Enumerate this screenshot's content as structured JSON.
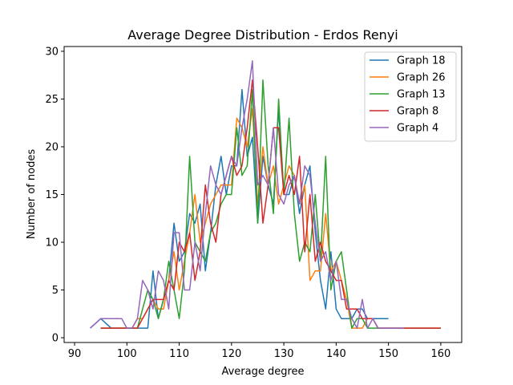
{
  "chart_data": {
    "type": "line",
    "title": "Average Degree Distribution - Erdos Renyi",
    "xlabel": "Average degree",
    "ylabel": "Number of nodes",
    "xlim": [
      88,
      164
    ],
    "ylim": [
      -0.5,
      30.5
    ],
    "xticks": [
      90,
      100,
      110,
      120,
      130,
      140,
      150,
      160
    ],
    "yticks": [
      0,
      5,
      10,
      15,
      20,
      25,
      30
    ],
    "grid": false,
    "legend_position": "top-right",
    "series": [
      {
        "name": "Graph 18",
        "color": "#1f77b4",
        "x": [
          93,
          94,
          95,
          96,
          97,
          98,
          99,
          100,
          101,
          102,
          103,
          104,
          105,
          106,
          107,
          108,
          109,
          110,
          111,
          112,
          113,
          114,
          115,
          116,
          117,
          118,
          119,
          120,
          121,
          122,
          123,
          124,
          125,
          126,
          127,
          128,
          129,
          130,
          131,
          132,
          133,
          134,
          135,
          136,
          137,
          138,
          139,
          140,
          141,
          142,
          143,
          144,
          145,
          146,
          147,
          148,
          149,
          150
        ],
        "y": [
          1,
          1.5,
          2,
          1.5,
          1,
          1,
          1,
          1,
          1,
          1,
          1,
          1,
          7,
          2,
          4,
          6,
          12,
          8,
          9,
          13,
          12,
          14,
          7,
          11,
          16,
          19,
          15,
          18,
          18,
          26,
          19,
          21,
          12,
          19,
          16,
          14,
          24,
          15,
          15,
          17,
          13,
          16,
          18,
          11,
          6,
          3,
          9,
          3,
          2,
          2,
          2,
          3,
          3,
          2,
          2,
          2,
          2,
          2
        ]
      },
      {
        "name": "Graph 26",
        "color": "#ff7f0e",
        "x": [
          95,
          96,
          97,
          98,
          99,
          100,
          101,
          102,
          103,
          104,
          105,
          106,
          107,
          108,
          109,
          110,
          111,
          112,
          113,
          114,
          115,
          116,
          117,
          118,
          119,
          120,
          121,
          122,
          123,
          124,
          125,
          126,
          127,
          128,
          129,
          130,
          131,
          132,
          133,
          134,
          135,
          136,
          137,
          138,
          139,
          140,
          141,
          142,
          143,
          144,
          145,
          146,
          147,
          148,
          149,
          150,
          151,
          152,
          153,
          154,
          155,
          156,
          157,
          158,
          159,
          160
        ],
        "y": [
          1,
          1,
          1,
          1,
          1,
          1,
          1,
          2,
          2,
          3,
          4,
          3,
          3,
          6,
          9,
          5,
          8,
          11,
          15,
          10,
          12,
          14,
          15,
          16,
          16,
          16,
          23,
          22,
          20,
          24,
          14,
          20,
          16,
          18,
          14,
          16,
          18,
          17,
          14,
          16,
          6,
          7,
          7,
          13,
          7,
          8,
          6,
          4,
          1,
          1,
          1,
          2,
          2,
          1,
          1,
          1,
          1,
          1,
          1,
          1,
          1,
          1,
          1,
          1,
          1,
          1
        ]
      },
      {
        "name": "Graph 13",
        "color": "#2ca02c",
        "x": [
          95,
          96,
          97,
          98,
          99,
          100,
          101,
          102,
          103,
          104,
          105,
          106,
          107,
          108,
          109,
          110,
          111,
          112,
          113,
          114,
          115,
          116,
          117,
          118,
          119,
          120,
          121,
          122,
          123,
          124,
          125,
          126,
          127,
          128,
          129,
          130,
          131,
          132,
          133,
          134,
          135,
          136,
          137,
          138,
          139,
          140,
          141,
          142,
          143,
          144,
          145,
          146,
          147,
          148,
          149,
          150,
          151,
          152,
          153,
          154,
          155,
          156,
          157,
          158,
          159,
          160
        ],
        "y": [
          1,
          1,
          1,
          1,
          1,
          1,
          1,
          1,
          3,
          5,
          4,
          2,
          4,
          8,
          5,
          2,
          7,
          19,
          10,
          9,
          8,
          11,
          12,
          14,
          15,
          15,
          22,
          17,
          18,
          26,
          12,
          27,
          18,
          13,
          25,
          15,
          23,
          13,
          8,
          10,
          9,
          15,
          8,
          19,
          5,
          8,
          9,
          5,
          1,
          2,
          2,
          1,
          1,
          1,
          1,
          1,
          1,
          1,
          1,
          1,
          1,
          1,
          1,
          1,
          1,
          1
        ]
      },
      {
        "name": "Graph 8",
        "color": "#d62728",
        "x": [
          95,
          96,
          97,
          98,
          99,
          100,
          101,
          102,
          103,
          104,
          105,
          106,
          107,
          108,
          109,
          110,
          111,
          112,
          113,
          114,
          115,
          116,
          117,
          118,
          119,
          120,
          121,
          122,
          123,
          124,
          125,
          126,
          127,
          128,
          129,
          130,
          131,
          132,
          133,
          134,
          135,
          136,
          137,
          138,
          139,
          140,
          141,
          142,
          143,
          144,
          145,
          146,
          147,
          148,
          149,
          150,
          151,
          152,
          153,
          154,
          155,
          156,
          157,
          158,
          159,
          160
        ],
        "y": [
          1,
          1,
          1,
          1,
          1,
          1,
          1,
          1,
          2,
          3,
          4,
          4,
          4,
          6,
          5,
          10,
          9,
          11,
          6,
          9,
          16,
          12,
          10,
          15,
          17,
          19,
          17,
          18,
          22,
          27,
          20,
          12,
          16,
          22,
          22,
          15,
          17,
          15,
          19,
          9,
          15,
          8,
          10,
          8,
          7,
          6,
          6,
          3,
          3,
          3,
          2,
          2,
          2,
          1,
          1,
          1,
          1,
          1,
          1,
          1,
          1,
          1,
          1,
          1,
          1,
          1
        ]
      },
      {
        "name": "Graph 4",
        "color": "#9467bd",
        "x": [
          93,
          94,
          95,
          96,
          97,
          98,
          99,
          100,
          101,
          102,
          103,
          104,
          105,
          106,
          107,
          108,
          109,
          110,
          111,
          112,
          113,
          114,
          115,
          116,
          117,
          118,
          119,
          120,
          121,
          122,
          123,
          124,
          125,
          126,
          127,
          128,
          129,
          130,
          131,
          132,
          133,
          134,
          135,
          136,
          137,
          138,
          139,
          140,
          141,
          142,
          143,
          144,
          145,
          146,
          147,
          148,
          149,
          150,
          151,
          152,
          153
        ],
        "y": [
          1,
          1.5,
          2,
          2,
          2,
          2,
          2,
          1,
          1,
          2,
          6,
          5,
          3,
          7,
          6,
          3,
          11,
          11,
          5,
          5,
          10,
          7,
          13,
          18,
          16,
          15,
          17,
          19,
          18,
          22,
          25,
          29,
          16,
          17,
          16,
          22,
          15,
          14,
          16,
          17,
          14,
          18,
          17,
          12,
          8,
          9,
          6,
          8,
          4,
          4,
          2,
          1,
          4,
          1,
          2,
          1,
          1,
          1,
          1,
          1,
          1
        ]
      }
    ]
  }
}
